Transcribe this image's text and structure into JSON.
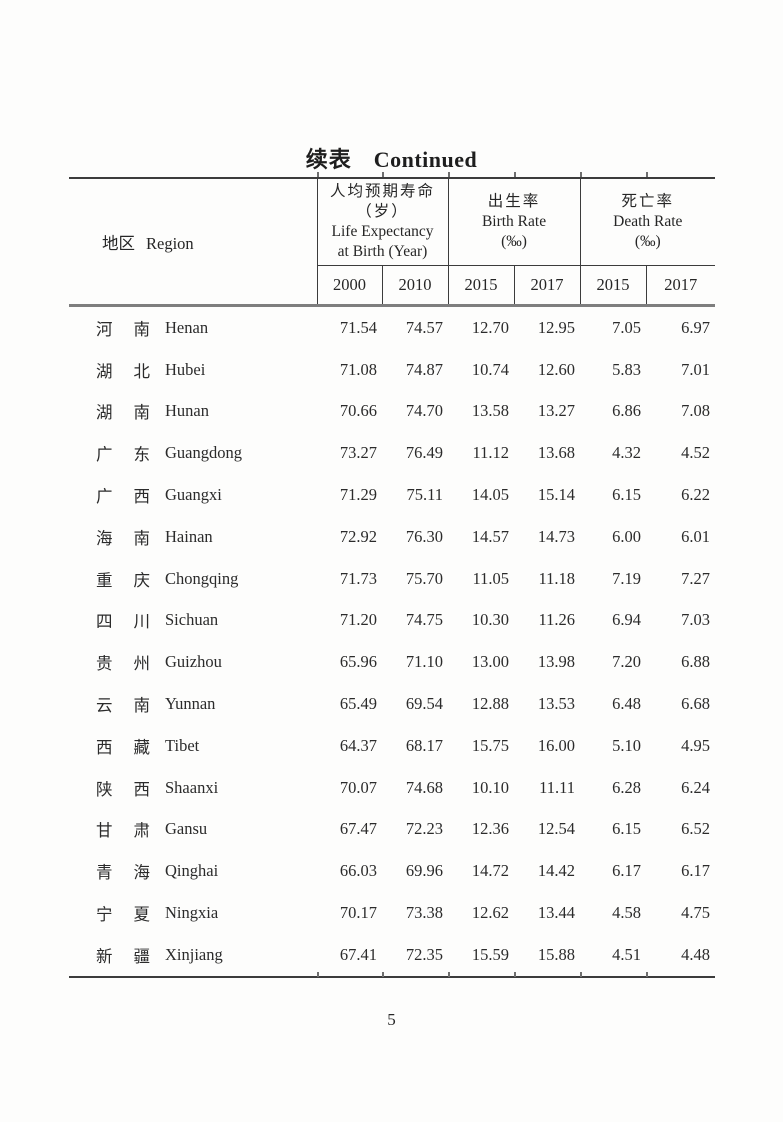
{
  "page": {
    "title_zh": "续表",
    "title_en": "Continued",
    "page_number": "5"
  },
  "table": {
    "region_header": {
      "zh": "地区",
      "en": "Region"
    },
    "header_groups": [
      {
        "lines": [
          "人均预期寿命",
          "（岁）",
          "Life Expectancy",
          "at Birth (Year)"
        ],
        "years": [
          "2000",
          "2010"
        ]
      },
      {
        "lines": [
          "出生率",
          "Birth Rate",
          "(‰)"
        ],
        "years": [
          "2015",
          "2017"
        ]
      },
      {
        "lines": [
          "死亡率",
          "Death Rate",
          "(‰)"
        ],
        "years": [
          "2015",
          "2017"
        ]
      }
    ],
    "rows": [
      {
        "zh": "河南",
        "en": "Henan",
        "values": [
          "71.54",
          "74.57",
          "12.70",
          "12.95",
          "7.05",
          "6.97"
        ]
      },
      {
        "zh": "湖北",
        "en": "Hubei",
        "values": [
          "71.08",
          "74.87",
          "10.74",
          "12.60",
          "5.83",
          "7.01"
        ]
      },
      {
        "zh": "湖南",
        "en": "Hunan",
        "values": [
          "70.66",
          "74.70",
          "13.58",
          "13.27",
          "6.86",
          "7.08"
        ]
      },
      {
        "zh": "广东",
        "en": "Guangdong",
        "values": [
          "73.27",
          "76.49",
          "11.12",
          "13.68",
          "4.32",
          "4.52"
        ]
      },
      {
        "zh": "广西",
        "en": "Guangxi",
        "values": [
          "71.29",
          "75.11",
          "14.05",
          "15.14",
          "6.15",
          "6.22"
        ]
      },
      {
        "zh": "海南",
        "en": "Hainan",
        "values": [
          "72.92",
          "76.30",
          "14.57",
          "14.73",
          "6.00",
          "6.01"
        ]
      },
      {
        "zh": "重庆",
        "en": "Chongqing",
        "values": [
          "71.73",
          "75.70",
          "11.05",
          "11.18",
          "7.19",
          "7.27"
        ]
      },
      {
        "zh": "四川",
        "en": "Sichuan",
        "values": [
          "71.20",
          "74.75",
          "10.30",
          "11.26",
          "6.94",
          "7.03"
        ]
      },
      {
        "zh": "贵州",
        "en": "Guizhou",
        "values": [
          "65.96",
          "71.10",
          "13.00",
          "13.98",
          "7.20",
          "6.88"
        ]
      },
      {
        "zh": "云南",
        "en": "Yunnan",
        "values": [
          "65.49",
          "69.54",
          "12.88",
          "13.53",
          "6.48",
          "6.68"
        ]
      },
      {
        "zh": "西藏",
        "en": "Tibet",
        "values": [
          "64.37",
          "68.17",
          "15.75",
          "16.00",
          "5.10",
          "4.95"
        ]
      },
      {
        "zh": "陕西",
        "en": "Shaanxi",
        "values": [
          "70.07",
          "74.68",
          "10.10",
          "11.11",
          "6.28",
          "6.24"
        ]
      },
      {
        "zh": "甘肃",
        "en": "Gansu",
        "values": [
          "67.47",
          "72.23",
          "12.36",
          "12.54",
          "6.15",
          "6.52"
        ]
      },
      {
        "zh": "青海",
        "en": "Qinghai",
        "values": [
          "66.03",
          "69.96",
          "14.72",
          "14.42",
          "6.17",
          "6.17"
        ]
      },
      {
        "zh": "宁夏",
        "en": "Ningxia",
        "values": [
          "70.17",
          "73.38",
          "12.62",
          "13.44",
          "4.58",
          "4.75"
        ]
      },
      {
        "zh": "新疆",
        "en": "Xinjiang",
        "values": [
          "67.41",
          "72.35",
          "15.59",
          "15.88",
          "4.51",
          "4.48"
        ]
      }
    ]
  }
}
